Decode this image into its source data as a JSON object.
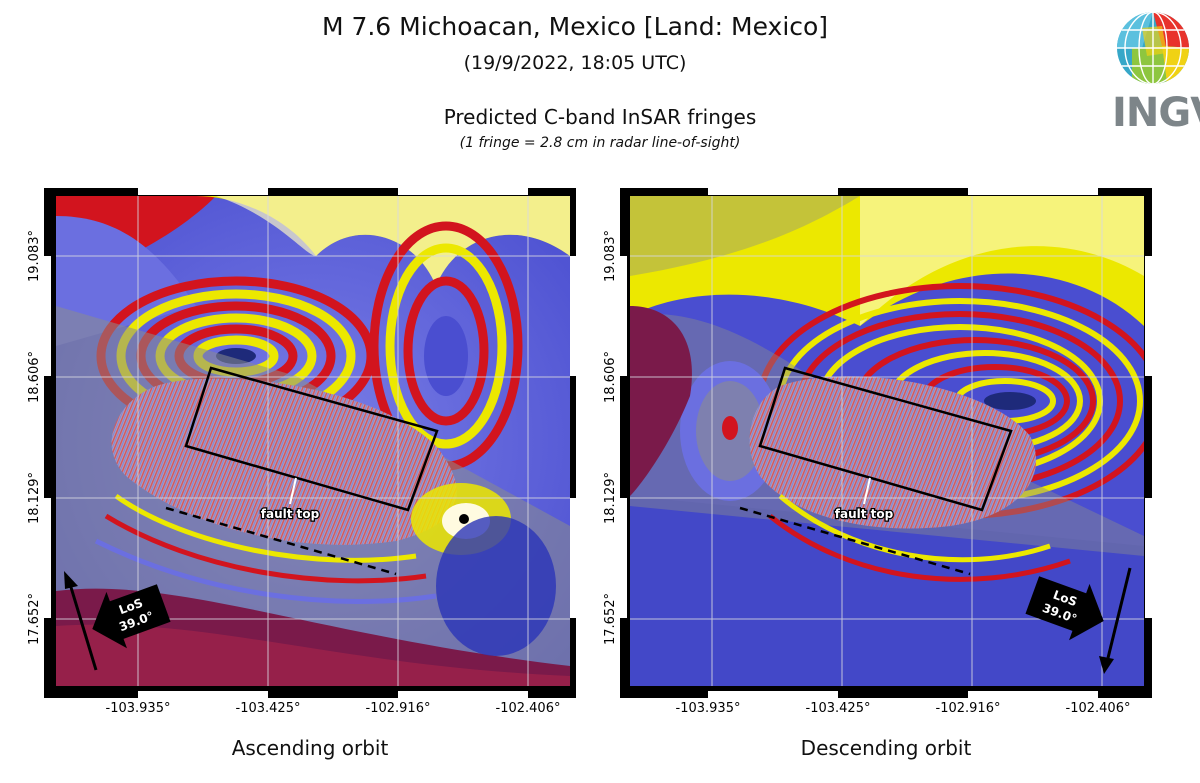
{
  "header": {
    "title": "M 7.6 Michoacan, Mexico [Land: Mexico]",
    "subtitle": "(19/9/2022, 18:05 UTC)",
    "product_title": "Predicted C-band InSAR fringes",
    "product_note": "(1 fringe = 2.8 cm in radar line-of-sight)"
  },
  "logo": {
    "text": "INGV"
  },
  "map": {
    "lon_ticks": [
      "-103.935°",
      "-103.425°",
      "-102.916°",
      "-102.406°"
    ],
    "lat_ticks": [
      "19.083°",
      "18.606°",
      "18.129°",
      "17.652°"
    ],
    "fault_label": "fault top",
    "los_label": "LoS",
    "incidence_angle": "39.0°"
  },
  "panels": {
    "ascending": {
      "caption": "Ascending orbit"
    },
    "descending": {
      "caption": "Descending orbit"
    }
  },
  "colors": {
    "fringe_red": "#d2141e",
    "fringe_yellow": "#ece800",
    "fringe_blue": "#6b6fe0",
    "fringe_navy": "#1e2a7a",
    "land_gray": "#8a8c8e"
  }
}
